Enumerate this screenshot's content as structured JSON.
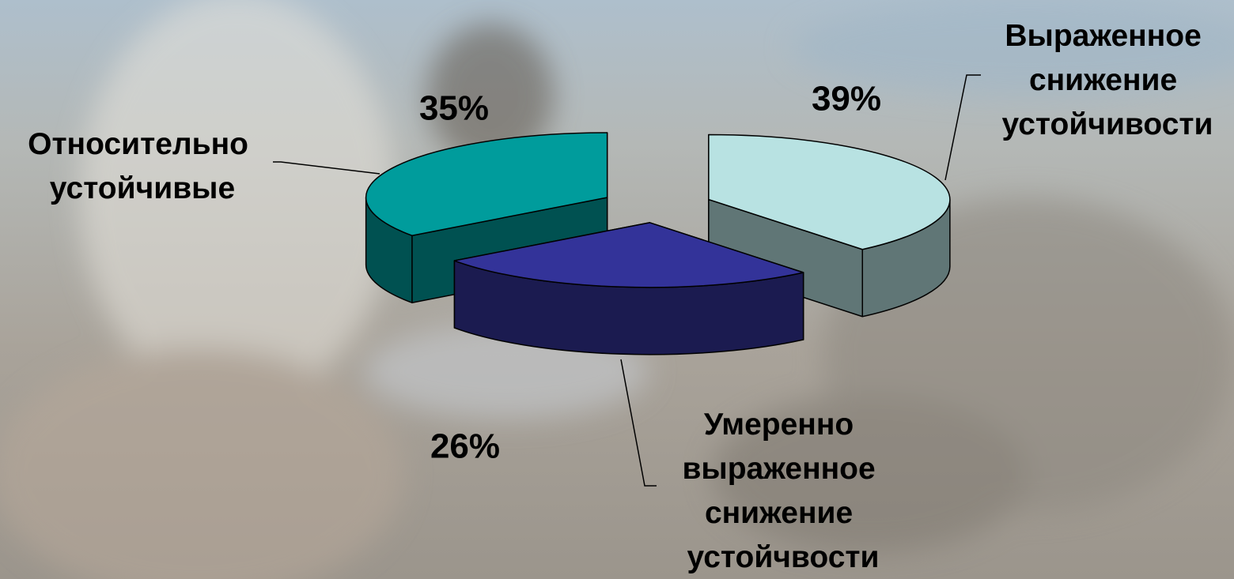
{
  "chart_data": {
    "type": "pie",
    "categories": [
      "Выраженное снижение устойчивости",
      "Умеренно выраженное снижение устойчвости",
      "Относительно устойчивые"
    ],
    "values": [
      39,
      26,
      35
    ],
    "value_labels": [
      "39%",
      "26%",
      "35%"
    ],
    "colors": [
      "#b8e2e2",
      "#333399",
      "#009c9c"
    ]
  }
}
